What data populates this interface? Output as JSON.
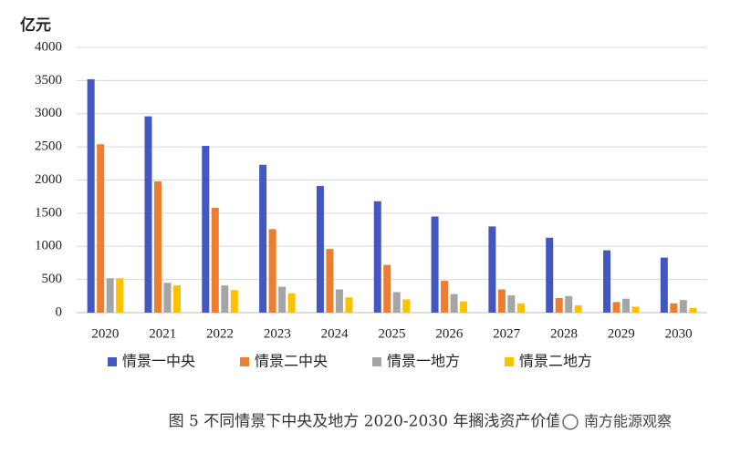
{
  "chart_data": {
    "type": "bar",
    "y_label": "亿元",
    "caption": "图 5 不同情景下中央及地方 2020-2030 年搁浅资产价值",
    "watermark": "南方能源观察",
    "categories": [
      "2020",
      "2021",
      "2022",
      "2023",
      "2024",
      "2025",
      "2026",
      "2027",
      "2028",
      "2029",
      "2030"
    ],
    "series": [
      {
        "name": "情景一中央",
        "color": "#4258c0",
        "values": [
          3520,
          2960,
          2515,
          2230,
          1910,
          1680,
          1450,
          1300,
          1130,
          940,
          830
        ]
      },
      {
        "name": "情景二中央",
        "color": "#ed7d31",
        "values": [
          2540,
          1980,
          1580,
          1260,
          960,
          720,
          480,
          350,
          220,
          160,
          140
        ]
      },
      {
        "name": "情景一地方",
        "color": "#a5a5a5",
        "values": [
          520,
          450,
          410,
          390,
          350,
          310,
          280,
          260,
          250,
          210,
          190
        ]
      },
      {
        "name": "情景二地方",
        "color": "#ffc000",
        "values": [
          520,
          410,
          340,
          290,
          230,
          200,
          170,
          140,
          110,
          90,
          70
        ]
      }
    ],
    "ylim": [
      0,
      4000
    ],
    "yticks": [
      0,
      500,
      1000,
      1500,
      2000,
      2500,
      3000,
      3500,
      4000
    ],
    "grid": true,
    "legend": "bottom"
  }
}
